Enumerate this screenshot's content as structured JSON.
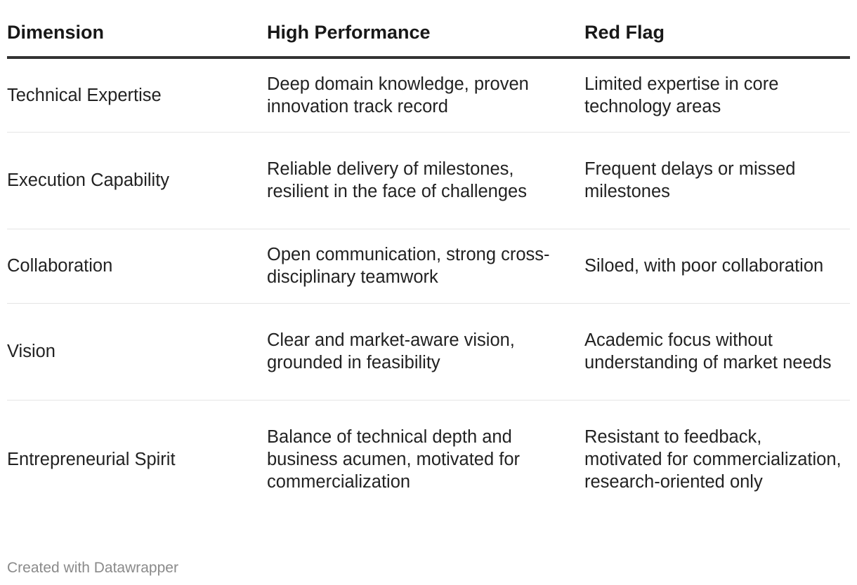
{
  "table": {
    "headers": [
      "Dimension",
      "High Performance",
      "Red Flag"
    ],
    "rows": [
      {
        "dimension": "Technical Expertise",
        "high_performance": "Deep domain knowledge, proven innovation track record",
        "red_flag": "Limited expertise in core technology areas"
      },
      {
        "dimension": "Execution Capability",
        "high_performance": "Reliable delivery of milestones, resilient in the face of challenges",
        "red_flag": "Frequent delays or missed milestones"
      },
      {
        "dimension": "Collaboration",
        "high_performance": "Open communication, strong cross-disciplinary teamwork",
        "red_flag": "Siloed, with poor collaboration"
      },
      {
        "dimension": "Vision",
        "high_performance": "Clear and market-aware vision, grounded in feasibility",
        "red_flag": "Academic focus without understanding of market needs"
      },
      {
        "dimension": "Entrepreneurial Spirit",
        "high_performance": "Balance of technical depth and business acumen, motivated for commercialization",
        "red_flag": "Resistant to feedback, motivated for commercialization, research-oriented only"
      }
    ]
  },
  "footer": {
    "credit": "Created with Datawrapper"
  }
}
